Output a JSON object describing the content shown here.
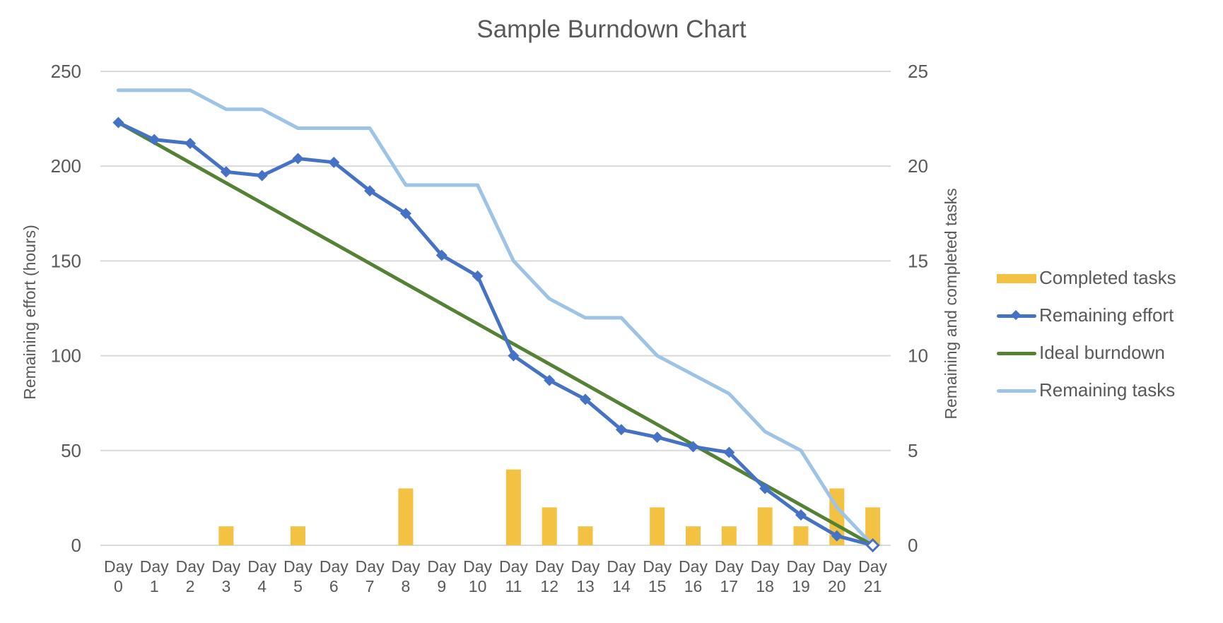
{
  "chart": {
    "title": "Sample Burndown Chart",
    "y_left_title": "Remaining effort (hours)",
    "y_right_title": "Remaining and completed tasks",
    "y_left_ticks": [
      "0",
      "50",
      "100",
      "150",
      "200",
      "250"
    ],
    "y_right_ticks": [
      "0",
      "5",
      "10",
      "15",
      "20",
      "25"
    ]
  },
  "legend": [
    {
      "label": "Completed tasks",
      "color": "#F4C242",
      "kind": "bar"
    },
    {
      "label": "Remaining effort",
      "color": "#4472C4",
      "kind": "line-marker"
    },
    {
      "label": "Ideal burndown",
      "color": "#548235",
      "kind": "line"
    },
    {
      "label": "Remaining tasks",
      "color": "#9DC3E6",
      "kind": "line"
    }
  ],
  "colors": {
    "completed": "#F4C242",
    "effort": "#4472C4",
    "ideal": "#548235",
    "tasks": "#9DC3E6",
    "grid": "#D9D9D9",
    "text": "#595959"
  },
  "chart_data": {
    "type": "bar+line",
    "title": "Sample Burndown Chart",
    "xlabel": "",
    "ylabel": "Remaining effort (hours)",
    "ylabel_right": "Remaining and completed tasks",
    "ylim": [
      0,
      250
    ],
    "ylim_right": [
      0,
      25
    ],
    "grid": true,
    "legend_position": "right",
    "categories": [
      "Day 0",
      "Day 1",
      "Day 2",
      "Day 3",
      "Day 4",
      "Day 5",
      "Day 6",
      "Day 7",
      "Day 8",
      "Day 9",
      "Day 10",
      "Day 11",
      "Day 12",
      "Day 13",
      "Day 14",
      "Day 15",
      "Day 16",
      "Day 17",
      "Day 18",
      "Day 19",
      "Day 20",
      "Day 21"
    ],
    "series": [
      {
        "name": "Completed tasks",
        "type": "bar",
        "axis": "right",
        "values": [
          0,
          0,
          0,
          1,
          0,
          1,
          0,
          0,
          3,
          0,
          0,
          4,
          2,
          1,
          0,
          2,
          1,
          1,
          2,
          1,
          3,
          2
        ]
      },
      {
        "name": "Remaining effort",
        "type": "line",
        "axis": "left",
        "marker": "diamond",
        "values": [
          223,
          214,
          212,
          197,
          195,
          204,
          202,
          187,
          175,
          153,
          142,
          100,
          87,
          77,
          61,
          57,
          52,
          49,
          30,
          16,
          5,
          0
        ]
      },
      {
        "name": "Ideal burndown",
        "type": "line",
        "axis": "left",
        "values": [
          223,
          212.4,
          201.8,
          191.1,
          180.5,
          169.9,
          159.3,
          148.7,
          138.0,
          127.4,
          116.8,
          106.2,
          95.6,
          85.0,
          74.3,
          63.7,
          53.1,
          42.5,
          31.9,
          21.2,
          10.6,
          0
        ]
      },
      {
        "name": "Remaining tasks",
        "type": "line",
        "axis": "right",
        "values": [
          24,
          24,
          24,
          23,
          23,
          22,
          22,
          22,
          19,
          19,
          19,
          15,
          13,
          12,
          12,
          10,
          9,
          8,
          6,
          5,
          2,
          0
        ]
      }
    ]
  }
}
